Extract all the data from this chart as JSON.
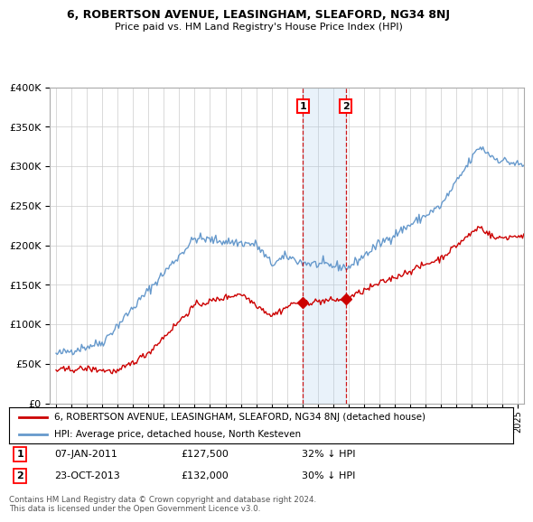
{
  "title1": "6, ROBERTSON AVENUE, LEASINGHAM, SLEAFORD, NG34 8NJ",
  "title2": "Price paid vs. HM Land Registry's House Price Index (HPI)",
  "legend_line1": "6, ROBERTSON AVENUE, LEASINGHAM, SLEAFORD, NG34 8NJ (detached house)",
  "legend_line2": "HPI: Average price, detached house, North Kesteven",
  "transaction1_date": "07-JAN-2011",
  "transaction1_price": "£127,500",
  "transaction1_hpi": "32% ↓ HPI",
  "transaction2_date": "23-OCT-2013",
  "transaction2_price": "£132,000",
  "transaction2_hpi": "30% ↓ HPI",
  "footnote": "Contains HM Land Registry data © Crown copyright and database right 2024.\nThis data is licensed under the Open Government Licence v3.0.",
  "red_color": "#cc0000",
  "blue_color": "#6699cc",
  "vline_color": "#cc0000",
  "span_color": "#ddeeff",
  "grid_color": "#cccccc",
  "ylim_min": 0,
  "ylim_max": 400000,
  "transaction1_year": 2011.03,
  "transaction2_year": 2013.81
}
